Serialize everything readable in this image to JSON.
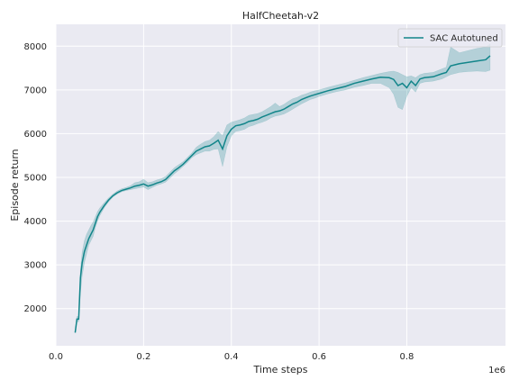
{
  "chart_data": {
    "type": "line",
    "title": "HalfCheetah-v2",
    "xlabel": "Time steps",
    "ylabel": "Episode return",
    "x_offset_label": "1e6",
    "xlim": [
      0.0,
      1.025
    ],
    "ylim": [
      1150,
      8500
    ],
    "x_ticks": [
      0.0,
      0.2,
      0.4,
      0.6,
      0.8
    ],
    "x_tick_labels": [
      "0.0",
      "0.2",
      "0.4",
      "0.6",
      "0.8"
    ],
    "y_ticks": [
      2000,
      3000,
      4000,
      5000,
      6000,
      7000,
      8000
    ],
    "y_tick_labels": [
      "2000",
      "3000",
      "4000",
      "5000",
      "6000",
      "7000",
      "8000"
    ],
    "grid": true,
    "legend_position": "top-right",
    "series": [
      {
        "name": "SAC Autotuned",
        "color": "#12858a",
        "band_color": "#12858a",
        "x": [
          0.044,
          0.048,
          0.052,
          0.056,
          0.06,
          0.065,
          0.07,
          0.075,
          0.08,
          0.085,
          0.09,
          0.095,
          0.1,
          0.11,
          0.12,
          0.13,
          0.14,
          0.15,
          0.16,
          0.17,
          0.18,
          0.19,
          0.2,
          0.21,
          0.22,
          0.23,
          0.24,
          0.25,
          0.26,
          0.27,
          0.28,
          0.29,
          0.3,
          0.31,
          0.32,
          0.33,
          0.34,
          0.35,
          0.36,
          0.37,
          0.38,
          0.39,
          0.4,
          0.41,
          0.42,
          0.43,
          0.44,
          0.45,
          0.46,
          0.47,
          0.48,
          0.49,
          0.5,
          0.51,
          0.52,
          0.53,
          0.54,
          0.55,
          0.56,
          0.57,
          0.58,
          0.59,
          0.6,
          0.62,
          0.64,
          0.66,
          0.68,
          0.7,
          0.72,
          0.74,
          0.76,
          0.77,
          0.78,
          0.79,
          0.8,
          0.81,
          0.82,
          0.83,
          0.84,
          0.86,
          0.88,
          0.89,
          0.9,
          0.92,
          0.94,
          0.96,
          0.98,
          0.99
        ],
        "mean": [
          1450,
          1760,
          1760,
          2700,
          3050,
          3300,
          3450,
          3600,
          3700,
          3800,
          3950,
          4100,
          4200,
          4350,
          4480,
          4580,
          4650,
          4700,
          4730,
          4760,
          4800,
          4820,
          4850,
          4800,
          4830,
          4870,
          4900,
          4950,
          5050,
          5150,
          5220,
          5300,
          5400,
          5500,
          5600,
          5650,
          5700,
          5720,
          5780,
          5850,
          5650,
          5950,
          6100,
          6180,
          6200,
          6230,
          6280,
          6300,
          6330,
          6380,
          6420,
          6460,
          6500,
          6520,
          6560,
          6620,
          6680,
          6720,
          6780,
          6820,
          6860,
          6890,
          6920,
          6980,
          7030,
          7080,
          7150,
          7200,
          7250,
          7290,
          7280,
          7240,
          7100,
          7150,
          7050,
          7200,
          7100,
          7250,
          7280,
          7300,
          7370,
          7400,
          7550,
          7600,
          7630,
          7660,
          7690,
          7780
        ],
        "lower": [
          1450,
          1700,
          1700,
          2350,
          2750,
          3050,
          3250,
          3450,
          3550,
          3650,
          3850,
          4000,
          4120,
          4300,
          4440,
          4550,
          4620,
          4670,
          4700,
          4720,
          4740,
          4760,
          4780,
          4720,
          4770,
          4820,
          4850,
          4890,
          4980,
          5080,
          5160,
          5250,
          5340,
          5450,
          5520,
          5560,
          5600,
          5600,
          5640,
          5650,
          5250,
          5700,
          5950,
          6050,
          6070,
          6100,
          6160,
          6190,
          6230,
          6260,
          6300,
          6360,
          6400,
          6420,
          6450,
          6500,
          6560,
          6620,
          6680,
          6730,
          6780,
          6810,
          6850,
          6910,
          6960,
          7000,
          7060,
          7100,
          7150,
          7150,
          7050,
          6900,
          6600,
          6550,
          6850,
          7050,
          6950,
          7150,
          7180,
          7200,
          7250,
          7300,
          7350,
          7400,
          7420,
          7430,
          7420,
          7450
        ],
        "upper": [
          1450,
          1820,
          1820,
          2900,
          3300,
          3550,
          3700,
          3800,
          3900,
          3980,
          4100,
          4220,
          4300,
          4420,
          4530,
          4620,
          4690,
          4740,
          4770,
          4810,
          4880,
          4900,
          4960,
          4880,
          4900,
          4940,
          4970,
          5020,
          5120,
          5220,
          5290,
          5360,
          5460,
          5560,
          5690,
          5760,
          5820,
          5850,
          5930,
          6050,
          5950,
          6200,
          6260,
          6290,
          6320,
          6360,
          6420,
          6440,
          6460,
          6500,
          6560,
          6620,
          6700,
          6620,
          6670,
          6740,
          6800,
          6830,
          6880,
          6910,
          6950,
          6980,
          7000,
          7060,
          7110,
          7160,
          7220,
          7280,
          7330,
          7380,
          7420,
          7430,
          7400,
          7350,
          7300,
          7320,
          7280,
          7350,
          7380,
          7400,
          7480,
          7520,
          7980,
          7850,
          7900,
          7950,
          7980,
          8050
        ]
      }
    ]
  }
}
